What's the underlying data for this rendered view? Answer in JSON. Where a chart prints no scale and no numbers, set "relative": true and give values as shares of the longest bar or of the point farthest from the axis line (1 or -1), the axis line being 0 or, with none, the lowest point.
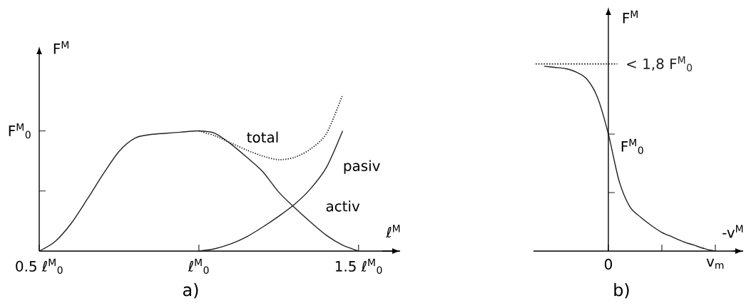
{
  "chart_data": [
    {
      "type": "line",
      "title": "a)",
      "xlabel": "ℓ$^{M}$",
      "ylabel": "F$^{M}$",
      "relative": true,
      "categories": [
        "0.5 ℓ$^{M}$$_{0}$",
        null,
        null,
        null,
        null,
        null,
        null,
        null,
        null,
        null,
        "ℓ$^{M}$$_{0}$",
        null,
        null,
        null,
        null,
        null,
        null,
        null,
        null,
        null,
        "1.5 ℓ$^{M}$$_{0}$"
      ],
      "ref_lines": [
        {
          "axis": "y",
          "value": 0.769,
          "label": "F$^{M}$$_{0}$"
        }
      ],
      "series": [
        {
          "name": "total",
          "color": "#222222",
          "line_style": "dotted",
          "values": [
            null,
            null,
            null,
            null,
            null,
            null,
            null,
            null,
            null,
            null,
            0.769,
            0.738,
            0.692,
            0.646,
            0.608,
            0.585,
            0.6,
            0.654,
            0.754,
            1,
            null
          ]
        },
        {
          "name": "pasiv",
          "color": "#222222",
          "line_style": "solid",
          "values": [
            null,
            null,
            null,
            null,
            null,
            null,
            null,
            null,
            null,
            null,
            0,
            0.015,
            0.046,
            0.092,
            0.154,
            0.223,
            0.3,
            0.4,
            0.538,
            0.769,
            null
          ]
        },
        {
          "name": "activ",
          "color": "#222222",
          "line_style": "solid",
          "values": [
            0,
            0.062,
            0.177,
            0.331,
            0.492,
            0.638,
            0.723,
            0.746,
            0.754,
            0.762,
            0.769,
            0.754,
            0.685,
            0.6,
            0.508,
            0.377,
            0.277,
            0.185,
            0.1,
            0.038,
            0
          ]
        }
      ]
    },
    {
      "type": "line",
      "title": "b)",
      "xlabel": "-v$^{M}$",
      "ylabel": "F$^{M}$",
      "relative": true,
      "categories": [
        null,
        null,
        null,
        null,
        null,
        null,
        "0",
        null,
        null,
        null,
        null,
        null,
        null,
        null,
        null,
        null,
        "v$_{m}$"
      ],
      "ref_lines": [
        {
          "axis": "y",
          "value": 1.013,
          "label": "< 1,8 F$^{M}$$_{0}$",
          "line_style": "dotted"
        },
        {
          "axis": "y",
          "value": 0.633,
          "label": "F$^{M}$$_{0}$"
        }
      ],
      "series": [
        {
          "color": "#222222",
          "line_style": "solid",
          "values": [
            1,
            0.994,
            0.987,
            0.968,
            0.93,
            0.829,
            0.633,
            0.38,
            0.241,
            0.184,
            0.139,
            0.101,
            0.076,
            0.051,
            0.032,
            0.013,
            0
          ]
        }
      ]
    }
  ]
}
